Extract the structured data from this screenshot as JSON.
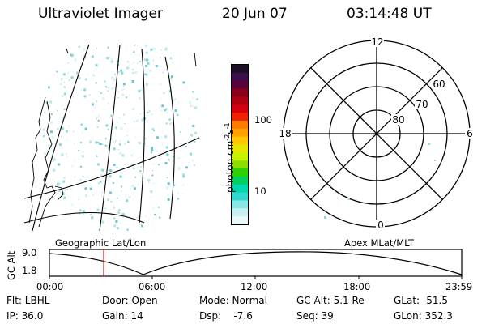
{
  "header": {
    "instrument": "Ultraviolet Imager",
    "date": "20 Jun 07",
    "time": "03:14:48 UT"
  },
  "colorbar": {
    "unit_label": "photon cm",
    "unit_sup1": "-2",
    "unit_s": "s",
    "unit_sup2": "-1",
    "ticks": [
      "100",
      "10"
    ],
    "colors": [
      "#1a0f24",
      "#3a0f4a",
      "#5a003a",
      "#8a0018",
      "#b00010",
      "#d40010",
      "#f02000",
      "#ff7a00",
      "#ffa000",
      "#ffc800",
      "#e6e600",
      "#c8f000",
      "#8ce000",
      "#2ed200",
      "#00d060",
      "#00d8b0",
      "#30d8d0",
      "#8ae6e6",
      "#c8f0f0",
      "#eaf8f8"
    ]
  },
  "polar": {
    "mlt_labels": {
      "top": "12",
      "left": "18",
      "right": "6",
      "bottom": "0"
    },
    "lat_labels": [
      "60",
      "70",
      "80"
    ]
  },
  "timeline": {
    "yaxis_label": "GC Alt",
    "yticks": [
      "9.0",
      "1.8"
    ],
    "left_caption": "Geographic Lat/Lon",
    "right_caption": "Apex  MLat/MLT",
    "xticks": [
      "00:00",
      "06:00",
      "12:00",
      "18:00",
      "23:59"
    ]
  },
  "info": {
    "row1": [
      "Flt: LBHL",
      "Door: Open",
      "Mode: Normal",
      "GC Alt: 5.1 Re",
      "GLat: -51.5"
    ],
    "row2": [
      "IP: 36.0",
      "Gain: 14",
      "Dsp:    -7.6",
      "Seq: 39",
      "GLon: 352.3"
    ]
  },
  "accent": {
    "cursor": "#d02020",
    "speckle": "#8fd8d8"
  }
}
